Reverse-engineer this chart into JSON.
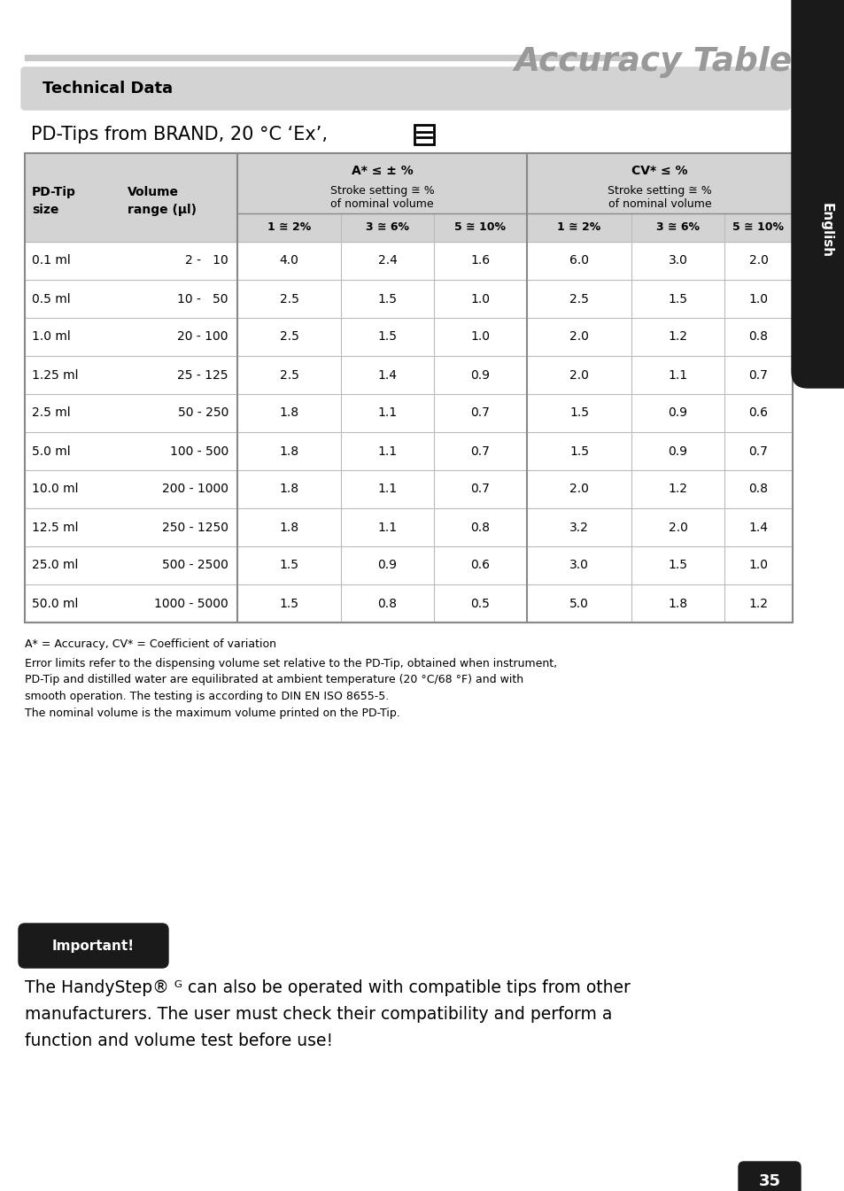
{
  "title": "Accuracy Table",
  "section_header": "Technical Data",
  "subtitle": "PD-Tips from BRAND, 20 °C ‘Ex’,",
  "page_number": "35",
  "bg_color": "#ffffff",
  "header_bg": "#d3d3d3",
  "table_header_bg": "#d3d3d3",
  "sub_headers": [
    "1 ≅ 2%",
    "3 ≅ 6%",
    "5 ≅ 10%",
    "1 ≅ 2%",
    "3 ≅ 6%",
    "5 ≅ 10%"
  ],
  "rows": [
    [
      "0.1 ml",
      "2 -   10",
      "4.0",
      "2.4",
      "1.6",
      "6.0",
      "3.0",
      "2.0"
    ],
    [
      "0.5 ml",
      "10 -   50",
      "2.5",
      "1.5",
      "1.0",
      "2.5",
      "1.5",
      "1.0"
    ],
    [
      "1.0 ml",
      "20 - 100",
      "2.5",
      "1.5",
      "1.0",
      "2.0",
      "1.2",
      "0.8"
    ],
    [
      "1.25 ml",
      "25 - 125",
      "2.5",
      "1.4",
      "0.9",
      "2.0",
      "1.1",
      "0.7"
    ],
    [
      "2.5 ml",
      "50 - 250",
      "1.8",
      "1.1",
      "0.7",
      "1.5",
      "0.9",
      "0.6"
    ],
    [
      "5.0 ml",
      "100 - 500",
      "1.8",
      "1.1",
      "0.7",
      "1.5",
      "0.9",
      "0.7"
    ],
    [
      "10.0 ml",
      "200 - 1000",
      "1.8",
      "1.1",
      "0.7",
      "2.0",
      "1.2",
      "0.8"
    ],
    [
      "12.5 ml",
      "250 - 1250",
      "1.8",
      "1.1",
      "0.8",
      "3.2",
      "2.0",
      "1.4"
    ],
    [
      "25.0 ml",
      "500 - 2500",
      "1.5",
      "0.9",
      "0.6",
      "3.0",
      "1.5",
      "1.0"
    ],
    [
      "50.0 ml",
      "1000 - 5000",
      "1.5",
      "0.8",
      "0.5",
      "5.0",
      "1.8",
      "1.2"
    ]
  ],
  "footnote1": "A* = Accuracy, CV* = Coefficient of variation",
  "footnote2": "Error limits refer to the dispensing volume set relative to the PD-Tip, obtained when instrument,\nPD-Tip and distilled water are equilibrated at ambient temperature (20 °C/68 °F) and with\nsmooth operation. The testing is according to DIN EN ISO 8655-5.\nThe nominal volume is the maximum volume printed on the PD-Tip.",
  "important_label": "Important!",
  "important_text_line1": "The HandyStep® ᴳ can also be operated with compatible tips from other",
  "important_text_line2": "manufacturers. The user must check their compatibility and perform a",
  "important_text_line3": "function and volume test before use!",
  "english_label": "English",
  "sidebar_color": "#1a1a1a",
  "title_color": "#999999",
  "important_bg": "#1a1a1a",
  "important_text_color": "#ffffff"
}
